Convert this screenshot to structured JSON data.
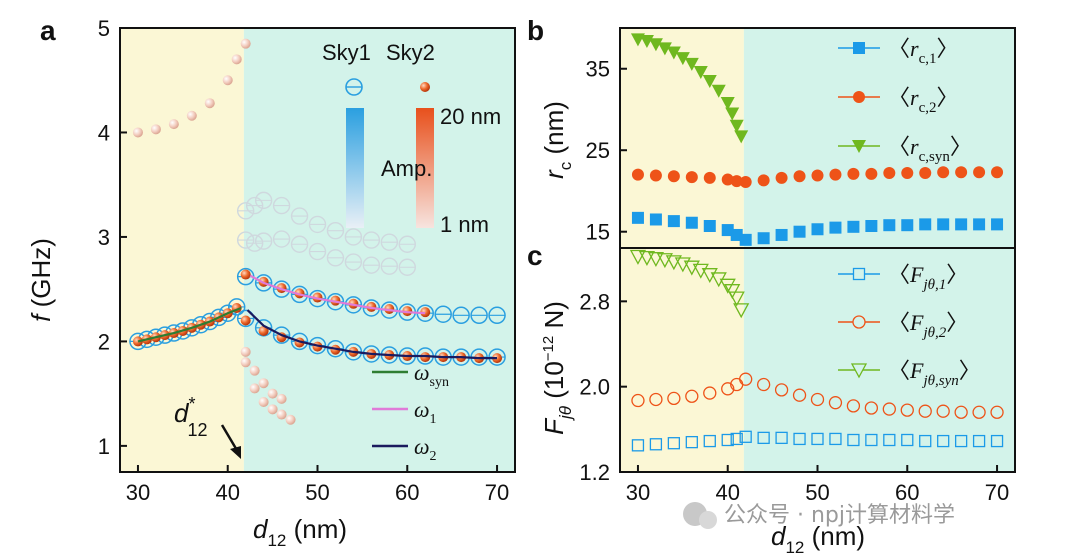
{
  "watermark": "公众号 · npj计算材料学",
  "chart_data": [
    {
      "panel": "a",
      "type": "scatter",
      "xlabel": "d12 (nm)",
      "xlabel_main": "d",
      "xlabel_sub": "12",
      "xlabel_unit": " (nm)",
      "ylabel": "f (GHz)",
      "ylabel_main": "f",
      "ylabel_unit": " (GHz)",
      "xlim": [
        28,
        72
      ],
      "ylim": [
        0.75,
        5
      ],
      "xticks": [
        30,
        40,
        50,
        60,
        70
      ],
      "yticks": [
        1,
        2,
        3,
        4,
        5
      ],
      "boundary_x": 41.8,
      "region_colors": {
        "left": "#fbf7d5",
        "right": "#d3f3ea"
      },
      "annotation": {
        "text": "d*12",
        "main": "d",
        "star": "*",
        "sub": "12",
        "points_to_x": 41.8
      },
      "colorbar": {
        "sky1_label": "Sky1",
        "sky2_label": "Sky2",
        "max_label": "20 nm",
        "mid_label": "Amp.",
        "min_label": "1 nm",
        "sky1_color": "#2a9fe0",
        "sky2_color": "#e8501c"
      },
      "series": [
        {
          "name": "Sky1 mode low (open circles)",
          "marker": "open-circle",
          "x": [
            30,
            31,
            32,
            33,
            34,
            35,
            36,
            37,
            38,
            39,
            40,
            41,
            42,
            44,
            46,
            48,
            50,
            52,
            54,
            56,
            58,
            60,
            62,
            64,
            66,
            68,
            70
          ],
          "y": [
            2.0,
            2.02,
            2.04,
            2.06,
            2.08,
            2.1,
            2.13,
            2.16,
            2.19,
            2.23,
            2.27,
            2.33,
            2.22,
            2.13,
            2.06,
            2.0,
            1.96,
            1.93,
            1.9,
            1.88,
            1.87,
            1.86,
            1.86,
            1.85,
            1.85,
            1.85,
            1.85
          ]
        },
        {
          "name": "Sky1 mode high (open circles)",
          "marker": "open-circle",
          "x": [
            42,
            44,
            46,
            48,
            50,
            52,
            54,
            56,
            58,
            60,
            62,
            64,
            66,
            68,
            70
          ],
          "y": [
            2.62,
            2.56,
            2.5,
            2.45,
            2.41,
            2.38,
            2.35,
            2.32,
            2.3,
            2.28,
            2.27,
            2.26,
            2.25,
            2.25,
            2.25
          ]
        },
        {
          "name": "Sky1 faint upper mode",
          "marker": "faint-circle",
          "x": [
            42,
            43,
            44,
            46,
            48,
            50,
            52,
            54,
            56,
            58,
            60
          ],
          "y": [
            3.25,
            3.3,
            3.35,
            3.3,
            3.2,
            3.12,
            3.06,
            3.0,
            2.97,
            2.95,
            2.93
          ]
        },
        {
          "name": "Sky1 faint mode ~2.9",
          "marker": "faint-circle",
          "x": [
            42,
            43,
            44,
            46,
            48,
            50,
            52,
            54,
            56,
            58,
            60
          ],
          "y": [
            2.97,
            2.94,
            2.96,
            2.98,
            2.93,
            2.86,
            2.8,
            2.76,
            2.73,
            2.72,
            2.71
          ]
        },
        {
          "name": "Sky2 mode low (filled spheres)",
          "marker": "sphere",
          "x": [
            30,
            31,
            32,
            33,
            34,
            35,
            36,
            37,
            38,
            39,
            40,
            41,
            42,
            44,
            46,
            48,
            50,
            52,
            54,
            56,
            58,
            60,
            62,
            64,
            66,
            68,
            70
          ],
          "y": [
            2.0,
            2.02,
            2.04,
            2.06,
            2.08,
            2.1,
            2.13,
            2.16,
            2.19,
            2.23,
            2.27,
            2.32,
            2.2,
            2.1,
            2.04,
            1.99,
            1.95,
            1.92,
            1.9,
            1.88,
            1.87,
            1.86,
            1.85,
            1.85,
            1.85,
            1.84,
            1.84
          ]
        },
        {
          "name": "Sky2 mode high (filled spheres)",
          "marker": "sphere",
          "x": [
            42,
            44,
            46,
            48,
            50,
            52,
            54,
            56,
            58,
            60,
            62
          ],
          "y": [
            2.64,
            2.57,
            2.51,
            2.46,
            2.42,
            2.39,
            2.36,
            2.33,
            2.31,
            2.29,
            2.28
          ]
        },
        {
          "name": "Sky2 faint upper branch",
          "marker": "faint-sphere",
          "x": [
            30,
            32,
            34,
            36,
            38,
            40,
            41,
            42
          ],
          "y": [
            4.0,
            4.03,
            4.08,
            4.16,
            4.28,
            4.5,
            4.7,
            4.85
          ]
        },
        {
          "name": "Sky2 faint lower branch",
          "marker": "faint-sphere",
          "x": [
            42,
            43,
            44,
            45,
            46,
            47
          ],
          "y": [
            1.8,
            1.55,
            1.42,
            1.35,
            1.3,
            1.25
          ]
        },
        {
          "name": "Sky2 faint mid branch",
          "marker": "faint-sphere",
          "x": [
            42,
            43,
            44,
            45,
            46
          ],
          "y": [
            1.9,
            1.72,
            1.6,
            1.5,
            1.45
          ]
        },
        {
          "name": "ω_syn",
          "label_main": "ω",
          "label_sub": "syn",
          "line_color": "#2e7d32",
          "x": [
            30,
            32,
            34,
            36,
            38,
            40,
            41.5
          ],
          "y": [
            2.0,
            2.04,
            2.08,
            2.13,
            2.19,
            2.27,
            2.32
          ]
        },
        {
          "name": "ω_1",
          "label_main": "ω",
          "label_sub": "1",
          "line_color": "#e07ad8",
          "x": [
            42.5,
            44,
            46,
            48,
            50,
            52,
            54,
            56,
            58,
            60,
            62
          ],
          "y": [
            2.63,
            2.56,
            2.5,
            2.45,
            2.41,
            2.38,
            2.35,
            2.32,
            2.3,
            2.28,
            2.27
          ]
        },
        {
          "name": "ω_2",
          "label_main": "ω",
          "label_sub": "2",
          "line_color": "#1a1a5e",
          "x": [
            42.2,
            44,
            46,
            48,
            50,
            52,
            54,
            56,
            58,
            60,
            62,
            64,
            66,
            68,
            70
          ],
          "y": [
            2.3,
            2.15,
            2.06,
            2.0,
            1.96,
            1.93,
            1.9,
            1.88,
            1.87,
            1.86,
            1.86,
            1.85,
            1.85,
            1.84,
            1.84
          ]
        }
      ]
    },
    {
      "panel": "b",
      "type": "scatter",
      "ylabel": "r_c (nm)",
      "ylabel_main": "r",
      "ylabel_sub": "c",
      "ylabel_unit": " (nm)",
      "xlim": [
        28,
        72
      ],
      "ylim": [
        13,
        40
      ],
      "yticks": [
        15,
        25,
        35
      ],
      "boundary_x": 41.8,
      "series": [
        {
          "name": "<r_c,1>",
          "label_main": "r",
          "label_sub": "c,1",
          "marker": "square",
          "color": "#1b9ae8",
          "x": [
            30,
            32,
            34,
            36,
            38,
            40,
            41,
            42,
            44,
            46,
            48,
            50,
            52,
            54,
            56,
            58,
            60,
            62,
            64,
            66,
            68,
            70
          ],
          "y": [
            16.7,
            16.5,
            16.3,
            16.1,
            15.7,
            15.2,
            14.6,
            14.0,
            14.2,
            14.6,
            15.0,
            15.3,
            15.5,
            15.6,
            15.7,
            15.8,
            15.8,
            15.9,
            15.9,
            15.9,
            15.9,
            15.9
          ]
        },
        {
          "name": "<r_c,2>",
          "label_main": "r",
          "label_sub": "c,2",
          "marker": "circle",
          "color": "#ee5318",
          "x": [
            30,
            32,
            34,
            36,
            38,
            40,
            41,
            42,
            44,
            46,
            48,
            50,
            52,
            54,
            56,
            58,
            60,
            62,
            64,
            66,
            68,
            70
          ],
          "y": [
            22.0,
            21.9,
            21.8,
            21.7,
            21.6,
            21.4,
            21.2,
            21.1,
            21.3,
            21.6,
            21.8,
            21.9,
            22.0,
            22.1,
            22.1,
            22.2,
            22.2,
            22.2,
            22.3,
            22.3,
            22.3,
            22.3
          ]
        },
        {
          "name": "<r_c,syn>",
          "label_main": "r",
          "label_sub": "c,syn",
          "marker": "triangle-down",
          "color": "#6fb81f",
          "x": [
            30,
            31,
            32,
            33,
            34,
            35,
            36,
            37,
            38,
            39,
            40,
            40.5,
            41,
            41.5
          ],
          "y": [
            38.6,
            38.4,
            38.0,
            37.5,
            37.0,
            36.3,
            35.6,
            34.6,
            33.5,
            32.3,
            30.8,
            29.5,
            28.0,
            26.7
          ]
        }
      ]
    },
    {
      "panel": "c",
      "type": "scatter",
      "xlabel": "d12 (nm)",
      "xlabel_main": "d",
      "xlabel_sub": "12",
      "xlabel_unit": " (nm)",
      "ylabel": "F_jθ (10^-12 N)",
      "ylabel_main": "F",
      "ylabel_sub": "jθ",
      "ylabel_unit_a": " (10",
      "ylabel_exp": "−12",
      "ylabel_unit_b": " N)",
      "xlim": [
        28,
        72
      ],
      "ylim": [
        1.2,
        3.3
      ],
      "xticks": [
        30,
        40,
        50,
        60,
        70
      ],
      "yticks": [
        1.2,
        2.0,
        2.8
      ],
      "boundary_x": 41.8,
      "series": [
        {
          "name": "<F_jθ,1>",
          "label_main": "F",
          "label_sub": "jθ,1",
          "marker": "open-square",
          "color": "#1b9ae8",
          "x": [
            30,
            32,
            34,
            36,
            38,
            40,
            41,
            42,
            44,
            46,
            48,
            50,
            52,
            54,
            56,
            58,
            60,
            62,
            64,
            66,
            68,
            70
          ],
          "y": [
            1.45,
            1.46,
            1.47,
            1.48,
            1.49,
            1.5,
            1.51,
            1.53,
            1.52,
            1.52,
            1.51,
            1.51,
            1.51,
            1.5,
            1.5,
            1.5,
            1.5,
            1.49,
            1.49,
            1.49,
            1.49,
            1.49
          ]
        },
        {
          "name": "<F_jθ,2>",
          "label_main": "F",
          "label_sub": "jθ,2",
          "marker": "open-circle",
          "color": "#ee5318",
          "x": [
            30,
            32,
            34,
            36,
            38,
            40,
            41,
            42,
            44,
            46,
            48,
            50,
            52,
            54,
            56,
            58,
            60,
            62,
            64,
            66,
            68,
            70
          ],
          "y": [
            1.87,
            1.88,
            1.89,
            1.91,
            1.94,
            1.98,
            2.02,
            2.07,
            2.02,
            1.97,
            1.92,
            1.88,
            1.85,
            1.82,
            1.8,
            1.79,
            1.78,
            1.77,
            1.77,
            1.76,
            1.76,
            1.76
          ]
        },
        {
          "name": "<F_jθ,syn>",
          "label_main": "F",
          "label_sub": "jθ,syn",
          "marker": "open-triangle-down",
          "color": "#6fb81f",
          "x": [
            30,
            31,
            32,
            33,
            34,
            35,
            36,
            37,
            38,
            39,
            40,
            40.5,
            41,
            41.5
          ],
          "y": [
            3.22,
            3.21,
            3.2,
            3.19,
            3.17,
            3.15,
            3.12,
            3.09,
            3.05,
            3.01,
            2.95,
            2.9,
            2.83,
            2.72
          ]
        }
      ]
    }
  ]
}
